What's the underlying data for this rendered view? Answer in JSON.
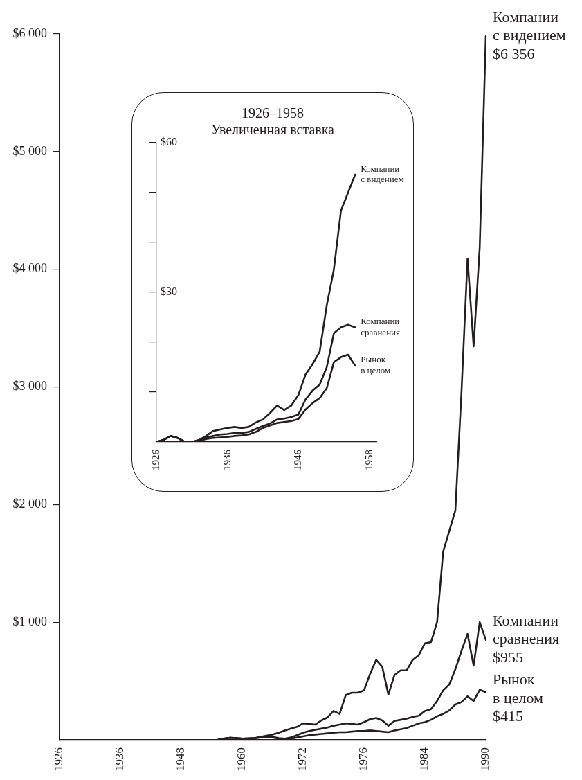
{
  "chart_data": [
    {
      "type": "line",
      "categories": [
        "1926",
        null,
        null,
        null,
        null,
        null,
        null,
        null,
        null,
        null,
        "1936",
        null,
        null,
        null,
        null,
        null,
        null,
        null,
        null,
        null,
        "1948",
        null,
        null,
        null,
        null,
        null,
        null,
        null,
        null,
        null,
        "1960",
        null,
        null,
        null,
        null,
        null,
        null,
        null,
        null,
        null,
        "1972",
        null,
        null,
        null,
        null,
        null,
        null,
        null,
        null,
        null,
        "1976",
        null,
        null,
        null,
        null,
        null,
        null,
        null,
        null,
        null,
        "1984",
        null,
        null,
        null,
        null,
        null,
        null,
        null,
        null,
        null,
        "1990"
      ],
      "series": [
        {
          "name": "Компании с видением",
          "color": "#231f20",
          "values": [
            null,
            null,
            null,
            null,
            null,
            null,
            null,
            null,
            null,
            null,
            null,
            null,
            null,
            null,
            null,
            null,
            null,
            null,
            null,
            null,
            null,
            null,
            null,
            null,
            null,
            null,
            0,
            10,
            18,
            15,
            10,
            12,
            15,
            25,
            35,
            45,
            60,
            80,
            95,
            110,
            140,
            135,
            130,
            165,
            190,
            245,
            220,
            380,
            400,
            400,
            420,
            560,
            680,
            620,
            385,
            550,
            590,
            590,
            680,
            720,
            820,
            830,
            1000,
            1600,
            1775,
            1950,
            2950,
            4090,
            3345,
            4185,
            5980
          ]
        },
        {
          "name": "Компании сравнения",
          "color": "#231f20",
          "values": [
            null,
            null,
            null,
            null,
            null,
            null,
            null,
            null,
            null,
            null,
            null,
            null,
            null,
            null,
            null,
            null,
            null,
            null,
            null,
            null,
            null,
            null,
            null,
            null,
            null,
            null,
            0,
            10,
            18,
            15,
            10,
            12,
            15,
            20,
            20,
            25,
            15,
            10,
            20,
            40,
            60,
            75,
            85,
            95,
            105,
            120,
            130,
            140,
            135,
            130,
            150,
            175,
            185,
            165,
            120,
            160,
            170,
            180,
            195,
            205,
            245,
            260,
            330,
            420,
            470,
            600,
            755,
            900,
            630,
            1000,
            850
          ]
        },
        {
          "name": "Рынок в целом",
          "color": "#231f20",
          "values": [
            null,
            null,
            null,
            null,
            null,
            null,
            null,
            null,
            null,
            null,
            null,
            null,
            null,
            null,
            null,
            null,
            null,
            null,
            null,
            null,
            null,
            null,
            null,
            null,
            null,
            null,
            0,
            10,
            18,
            15,
            10,
            12,
            15,
            20,
            20,
            20,
            10,
            5,
            10,
            20,
            30,
            40,
            45,
            50,
            55,
            60,
            65,
            65,
            70,
            75,
            75,
            80,
            75,
            70,
            65,
            80,
            90,
            100,
            120,
            140,
            150,
            170,
            200,
            220,
            250,
            300,
            320,
            370,
            330,
            425,
            405
          ]
        }
      ],
      "ylim": [
        0,
        6000
      ],
      "yticks": [
        {
          "value": 1000,
          "label": "$1 000"
        },
        {
          "value": 2000,
          "label": "$2 000"
        },
        {
          "value": 3000,
          "label": "$3 000"
        },
        {
          "value": 4000,
          "label": "$4 000"
        },
        {
          "value": 5000,
          "label": "$5 000"
        },
        {
          "value": 6000,
          "label": "$6 000"
        }
      ],
      "annotations": [
        "$6 356",
        "$955",
        "$415"
      ],
      "marker": "none",
      "line_style": "solid"
    },
    {
      "type": "line",
      "title": "1926–1958",
      "subtitle": "Увеличенная вставка",
      "categories": [
        "1926",
        null,
        null,
        null,
        null,
        null,
        null,
        null,
        null,
        null,
        "1936",
        null,
        null,
        null,
        null,
        null,
        null,
        null,
        null,
        null,
        "1946",
        null,
        null,
        null,
        null,
        null,
        null,
        null,
        null,
        null,
        "1958",
        null
      ],
      "series": [
        {
          "name": "Компании с видением",
          "color": "#231f20",
          "values": [
            0,
            0.4,
            1.2,
            0.8,
            0,
            0,
            0.4,
            1.2,
            2.2,
            2.5,
            2.8,
            3,
            2.8,
            3,
            3.9,
            4.5,
            5.8,
            7.3,
            6.4,
            7.3,
            9.4,
            13.5,
            15.6,
            18.1,
            27.4,
            34.6,
            46.4,
            50,
            53.6,
            null,
            null,
            null
          ]
        },
        {
          "name": "Компании сравнения",
          "color": "#231f20",
          "values": [
            0,
            0.4,
            1.2,
            0.8,
            0,
            0,
            0.3,
            0.9,
            1.2,
            1.5,
            1.6,
            1.8,
            1.8,
            2,
            2.6,
            3.2,
            3.7,
            4.5,
            4.7,
            5,
            5.5,
            8.5,
            10.3,
            11.5,
            15,
            21.8,
            23,
            23.5,
            23,
            null,
            null,
            null
          ]
        },
        {
          "name": "Рынок в целом",
          "color": "#231f20",
          "values": [
            0,
            0.4,
            1.2,
            0.8,
            0,
            0,
            0.2,
            0.6,
            0.8,
            0.9,
            1,
            1.2,
            1.3,
            1.5,
            2,
            2.8,
            3.3,
            3.8,
            4,
            4.2,
            4.6,
            6.5,
            7.8,
            8.8,
            10.8,
            16,
            17,
            17.5,
            15.3,
            null,
            null,
            null
          ]
        }
      ],
      "ylim": [
        0,
        60
      ],
      "yticks": [
        {
          "value": 10,
          "label": null
        },
        {
          "value": 20,
          "label": null
        },
        {
          "value": 30,
          "label": "$30"
        },
        {
          "value": 40,
          "label": null
        },
        {
          "value": 50,
          "label": null
        },
        {
          "value": 60,
          "label": "$60"
        }
      ],
      "marker": "none",
      "line_style": "solid"
    }
  ]
}
